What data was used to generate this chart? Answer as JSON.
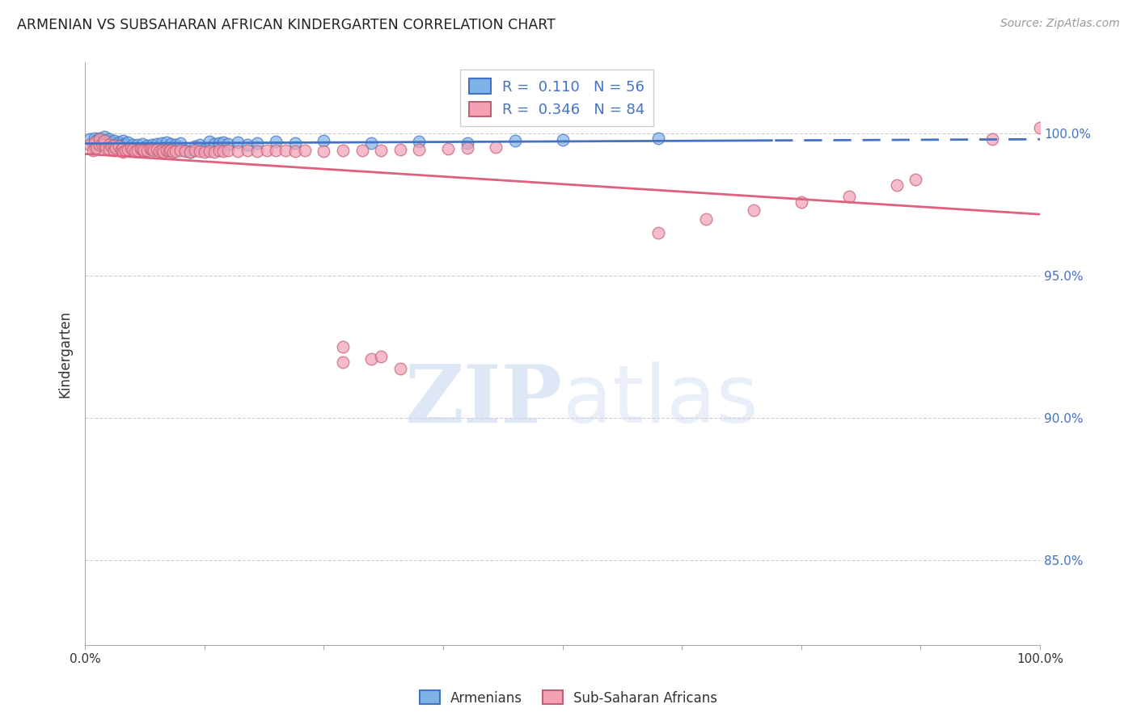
{
  "title": "ARMENIAN VS SUBSAHARAN AFRICAN KINDERGARTEN CORRELATION CHART",
  "source": "Source: ZipAtlas.com",
  "ylabel": "Kindergarten",
  "ytick_labels": [
    "100.0%",
    "95.0%",
    "90.0%",
    "85.0%"
  ],
  "ytick_values": [
    1.0,
    0.95,
    0.9,
    0.85
  ],
  "xlim": [
    0.0,
    1.0
  ],
  "ylim": [
    0.82,
    1.025
  ],
  "legend_armenian": "Armenians",
  "legend_subsaharan": "Sub-Saharan Africans",
  "R_armenian": 0.11,
  "N_armenian": 56,
  "R_subsaharan": 0.346,
  "N_subsaharan": 84,
  "color_armenian": "#7EB3E8",
  "color_subsaharan": "#F4A0B5",
  "color_armenian_line": "#4472C4",
  "color_subsaharan_line": "#E06080",
  "color_text_blue": "#4472C4",
  "watermark_color": "#C8D8F0",
  "armenian_x": [
    0.005,
    0.008,
    0.01,
    0.01,
    0.012,
    0.015,
    0.015,
    0.018,
    0.02,
    0.02,
    0.022,
    0.025,
    0.025,
    0.028,
    0.03,
    0.03,
    0.032,
    0.035,
    0.038,
    0.04,
    0.04,
    0.042,
    0.045,
    0.05,
    0.055,
    0.06,
    0.065,
    0.07,
    0.075,
    0.08,
    0.085,
    0.09,
    0.095,
    0.1,
    0.105,
    0.11,
    0.115,
    0.12,
    0.125,
    0.13,
    0.135,
    0.14,
    0.145,
    0.15,
    0.16,
    0.17,
    0.18,
    0.2,
    0.22,
    0.25,
    0.3,
    0.35,
    0.4,
    0.45,
    0.5,
    0.6
  ],
  "armenian_y": [
    0.998,
    0.996,
    0.9985,
    0.995,
    0.9975,
    0.9985,
    0.996,
    0.998,
    0.999,
    0.9965,
    0.9975,
    0.998,
    0.996,
    0.997,
    0.9975,
    0.9955,
    0.996,
    0.997,
    0.9965,
    0.9975,
    0.996,
    0.9965,
    0.997,
    0.996,
    0.996,
    0.9965,
    0.9958,
    0.996,
    0.9965,
    0.9968,
    0.997,
    0.9965,
    0.9962,
    0.9968,
    0.994,
    0.9935,
    0.9955,
    0.996,
    0.9945,
    0.9972,
    0.9965,
    0.9968,
    0.997,
    0.9965,
    0.997,
    0.996,
    0.9968,
    0.9972,
    0.9968,
    0.9975,
    0.9968,
    0.9972,
    0.9968,
    0.9975,
    0.9978,
    0.9985
  ],
  "subsaharan_x": [
    0.005,
    0.008,
    0.01,
    0.012,
    0.015,
    0.015,
    0.018,
    0.02,
    0.02,
    0.022,
    0.025,
    0.025,
    0.028,
    0.03,
    0.03,
    0.032,
    0.035,
    0.038,
    0.04,
    0.04,
    0.042,
    0.045,
    0.048,
    0.05,
    0.052,
    0.055,
    0.058,
    0.06,
    0.062,
    0.065,
    0.068,
    0.07,
    0.072,
    0.075,
    0.078,
    0.08,
    0.082,
    0.085,
    0.088,
    0.09,
    0.092,
    0.095,
    0.1,
    0.105,
    0.11,
    0.115,
    0.12,
    0.125,
    0.13,
    0.135,
    0.14,
    0.145,
    0.15,
    0.16,
    0.17,
    0.18,
    0.19,
    0.2,
    0.21,
    0.22,
    0.23,
    0.25,
    0.27,
    0.29,
    0.31,
    0.33,
    0.35,
    0.38,
    0.4,
    0.43,
    0.27,
    0.3,
    0.31,
    0.33,
    0.27,
    0.6,
    0.65,
    0.7,
    0.75,
    0.8,
    0.85,
    0.87,
    0.95,
    1.0
  ],
  "subsaharan_y": [
    0.996,
    0.994,
    0.997,
    0.995,
    0.996,
    0.998,
    0.9965,
    0.996,
    0.9975,
    0.995,
    0.996,
    0.9945,
    0.9955,
    0.9958,
    0.994,
    0.995,
    0.9955,
    0.9945,
    0.995,
    0.9935,
    0.994,
    0.9945,
    0.995,
    0.9945,
    0.9938,
    0.9942,
    0.9948,
    0.9945,
    0.994,
    0.9942,
    0.9948,
    0.9945,
    0.994,
    0.9945,
    0.9938,
    0.994,
    0.9935,
    0.9942,
    0.9938,
    0.994,
    0.9935,
    0.9938,
    0.9942,
    0.9938,
    0.9935,
    0.994,
    0.9938,
    0.9935,
    0.9938,
    0.9935,
    0.9942,
    0.9938,
    0.994,
    0.9938,
    0.9942,
    0.9938,
    0.994,
    0.9942,
    0.994,
    0.9938,
    0.9942,
    0.9938,
    0.9942,
    0.994,
    0.9942,
    0.9945,
    0.9945,
    0.9948,
    0.995,
    0.9952,
    0.9195,
    0.9208,
    0.9215,
    0.9172,
    0.925,
    0.965,
    0.97,
    0.973,
    0.9758,
    0.978,
    0.982,
    0.984,
    0.998,
    1.002
  ]
}
